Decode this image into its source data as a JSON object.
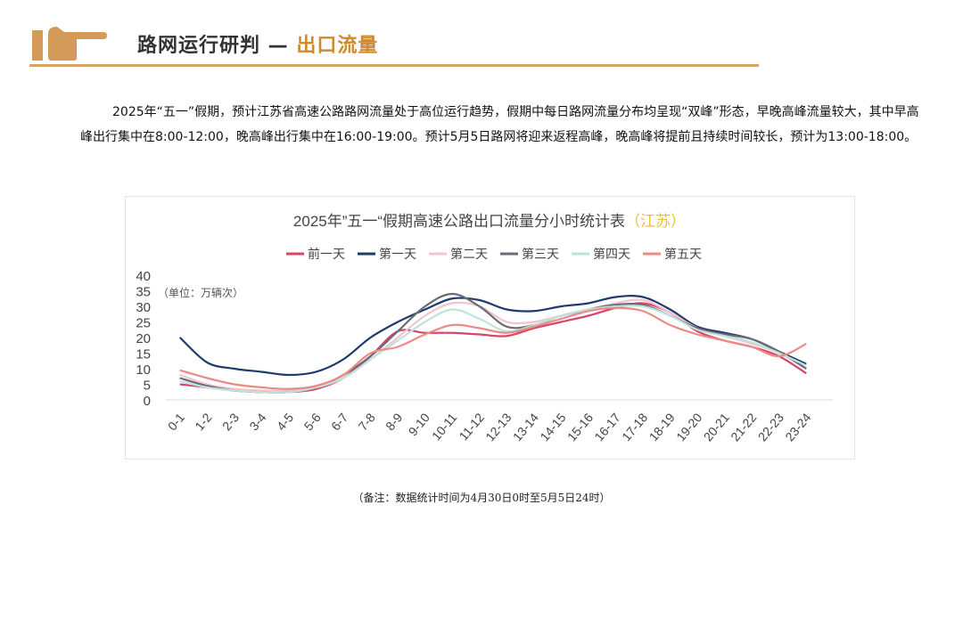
{
  "header": {
    "title_main": "路网运行研判 — ",
    "title_accent": "出口流量",
    "icon": "pointing-hand-icon"
  },
  "paragraph": "2025年“五一”假期，预计江苏省高速公路路网流量处于高位运行趋势，假期中每日路网流量分布均呈现“双峰”形态，早晚高峰流量较大，其中早高峰出行集中在8:00-12:00，晚高峰出行集中在16:00-19:00。预计5月5日路网将迎来返程高峰，晚高峰将提前且持续时间较长，预计为13:00-18:00。",
  "note": "（备注：数据统计时间为4月30日0时至5月5日24时）",
  "chart_data": {
    "type": "line",
    "title": "2025年”五一“假期高速公路出口流量分小时统计表",
    "title_accent": "（江苏）",
    "unit_label": "（单位：万辆次）",
    "ylim": [
      0,
      40
    ],
    "yticks": [
      0,
      5,
      10,
      15,
      20,
      25,
      30,
      35,
      40
    ],
    "legend_position": "top",
    "grid": false,
    "categories": [
      "0-1",
      "1-2",
      "2-3",
      "3-4",
      "4-5",
      "5-6",
      "6-7",
      "7-8",
      "8-9",
      "9-10",
      "10-11",
      "11-12",
      "12-13",
      "13-14",
      "14-15",
      "15-16",
      "16-17",
      "17-18",
      "18-19",
      "19-20",
      "20-21",
      "21-22",
      "22-23",
      "23-24"
    ],
    "series": [
      {
        "name": "前一天",
        "color": "#d6456a",
        "values": [
          5,
          4,
          3,
          2.5,
          2.5,
          3.5,
          7,
          14,
          22,
          21.5,
          21.5,
          21,
          20.5,
          23,
          25,
          27,
          29.5,
          31,
          28,
          22,
          19,
          17,
          14,
          8.5
        ]
      },
      {
        "name": "第一天",
        "color": "#1f3a6e",
        "values": [
          20,
          12,
          10,
          9,
          8,
          9,
          13,
          20,
          25,
          29,
          32.5,
          32,
          29,
          28.5,
          30,
          31,
          33,
          33,
          29,
          23.5,
          21.5,
          19.5,
          15.5,
          11.5
        ]
      },
      {
        "name": "第二天",
        "color": "#f2c4cc",
        "values": [
          8,
          5,
          3.5,
          3,
          3,
          4,
          7,
          13,
          20,
          27,
          31,
          30,
          25,
          25,
          27,
          29,
          31,
          32,
          28,
          23,
          20.5,
          18,
          15,
          10
        ]
      },
      {
        "name": "第三天",
        "color": "#6b6b78",
        "values": [
          7,
          4.5,
          3,
          2.5,
          2.5,
          4,
          8,
          14,
          22,
          30,
          34,
          30,
          23.5,
          24,
          27,
          29,
          30.5,
          30.5,
          27,
          23,
          21,
          19.5,
          15.5,
          10
        ]
      },
      {
        "name": "第四天",
        "color": "#bfe3dc",
        "values": [
          6,
          4,
          3,
          2.5,
          2.5,
          4,
          7,
          13,
          19,
          25,
          29,
          26,
          22,
          24,
          27,
          29,
          30,
          30,
          27,
          22.5,
          20.5,
          18.5,
          15,
          11
        ]
      },
      {
        "name": "第五天",
        "color": "#ec8a86",
        "values": [
          9.5,
          7,
          5,
          4,
          3.5,
          4.5,
          8,
          15,
          17,
          21,
          24,
          23,
          21.5,
          23.5,
          26,
          28.5,
          29.5,
          28.5,
          24,
          21,
          19,
          17,
          14,
          18
        ]
      }
    ]
  }
}
